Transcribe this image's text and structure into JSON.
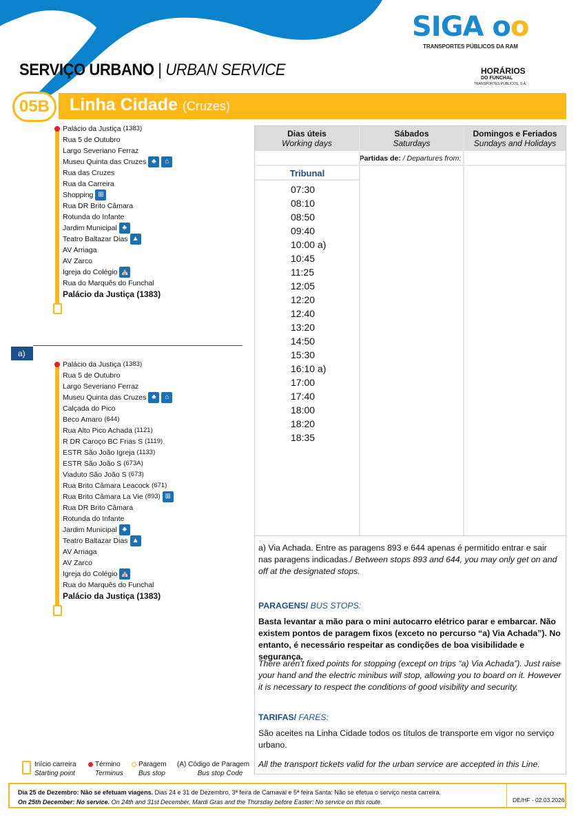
{
  "brand": {
    "logo": "SIGA",
    "logo_sub": "TRANSPORTES PÚBLICOS DA RAM",
    "partner_logo": "HORÁRIOS",
    "partner_sub": "DO FUNCHAL",
    "partner_sub2": "TRANSPORTES PÚBLICOS, S.A.",
    "colors": {
      "blue": "#1a8ad0",
      "yellow": "#fbb817",
      "navy": "#1b4f8a"
    }
  },
  "header": {
    "title_pt": "SERVIÇO URBANO",
    "separator": "|",
    "title_en": "URBAN SERVICE",
    "line_code": "05B",
    "line_name": "Linha Cidade",
    "line_sub": "(Cruzes)"
  },
  "route1": {
    "stops": [
      {
        "name": "Palácio da Justiça",
        "code": "(1383)",
        "icons": []
      },
      {
        "name": "Rua 5 de Outubro",
        "icons": []
      },
      {
        "name": "Largo Severiano Ferraz",
        "icons": []
      },
      {
        "name": "Museu Quinta das Cruzes",
        "icons": [
          "garden-icon",
          "museum-icon"
        ]
      },
      {
        "name": "Rua das Cruzes",
        "icons": []
      },
      {
        "name": "Rua da Carreira",
        "icons": []
      },
      {
        "name": "Shopping",
        "icons": [
          "shopping-icon"
        ]
      },
      {
        "name": "Rua DR Brito Câmara",
        "icons": []
      },
      {
        "name": "Rotunda do Infante",
        "icons": []
      },
      {
        "name": "Jardim Municipal",
        "icons": [
          "garden-icon"
        ]
      },
      {
        "name": "Teatro Baltazar Dias",
        "icons": [
          "theatre-icon"
        ]
      },
      {
        "name": "AV Arriaga",
        "icons": []
      },
      {
        "name": "AV Zarco",
        "icons": []
      },
      {
        "name": "Igreja do Colégio",
        "icons": [
          "church-icon"
        ]
      },
      {
        "name": "Rua do Marquês do Funchal",
        "icons": []
      },
      {
        "name": "Palácio da Justiça (1383)",
        "icons": [],
        "final": true
      }
    ]
  },
  "route2": {
    "label": "a)",
    "stops": [
      {
        "name": "Palácio da Justiça",
        "code": "(1383)",
        "icons": []
      },
      {
        "name": "Rua 5 de Outubro",
        "icons": []
      },
      {
        "name": "Largo Severiano Ferraz",
        "icons": []
      },
      {
        "name": "Museu Quinta das Cruzes",
        "icons": [
          "garden-icon",
          "museum-icon"
        ]
      },
      {
        "name": "Calçada do Pico",
        "icons": []
      },
      {
        "name": "Beco Amaro",
        "code": "(644)",
        "icons": []
      },
      {
        "name": "Rua Alto Pico Achada",
        "code": "(1121)",
        "icons": []
      },
      {
        "name": "R DR Caroço BC Frias S",
        "code": "(1119)",
        "icons": []
      },
      {
        "name": "ESTR São João Igreja",
        "code": "(1133)",
        "icons": []
      },
      {
        "name": "ESTR São João S",
        "code": "(673A)",
        "icons": []
      },
      {
        "name": "Viaduto São João S",
        "code": "(673)",
        "icons": []
      },
      {
        "name": "Rua Brito Câmara Leacock",
        "code": "(671)",
        "icons": []
      },
      {
        "name": "Rua Brito Câmara La Vie",
        "code": "(893)",
        "icons": [
          "shopping-icon"
        ]
      },
      {
        "name": "Rua DR Brito Câmara",
        "icons": []
      },
      {
        "name": "Rotunda do Infante",
        "icons": []
      },
      {
        "name": "Jardim Municipal",
        "icons": [
          "garden-icon"
        ]
      },
      {
        "name": "Teatro Baltazar Dias",
        "icons": [
          "theatre-icon"
        ]
      },
      {
        "name": "AV Arriaga",
        "icons": []
      },
      {
        "name": "AV Zarco",
        "icons": []
      },
      {
        "name": "Igreja do Colégio",
        "icons": [
          "church-icon"
        ]
      },
      {
        "name": "Rua do Marquês do Funchal",
        "icons": []
      },
      {
        "name": "Palácio da Justiça (1383)",
        "icons": [],
        "final": true
      }
    ]
  },
  "timetable": {
    "columns": [
      {
        "pt": "Dias úteis",
        "en": "Working days"
      },
      {
        "pt": "Sábados",
        "en": "Saturdays"
      },
      {
        "pt": "Domingos e Feriados",
        "en": "Sundays and Holidays"
      }
    ],
    "departures_pt": "Partidas de:",
    "departures_en": "/ Departures from:",
    "origin": "Tribunal",
    "working_days": [
      "07:30",
      "08:10",
      "08:50",
      "09:40",
      "10:00 a)",
      "10:45",
      "11:25",
      "12:05",
      "12:20",
      "12:40",
      "13:20",
      "14:50",
      "15:30",
      "16:10 a)",
      "17:00",
      "17:40",
      "18:00",
      "18:20",
      "18:35"
    ]
  },
  "notes": {
    "a_pt": "a) Via Achada. Entre as paragens 893 e 644 apenas é permitido entrar e sair nas paragens indicadas./",
    "a_en": " Between stops 893 and 644, you may only get on and off at the designated stops.",
    "stops_head_pt": "PARAGENS/",
    "stops_head_en": " BUS STOPS:",
    "stops_pt": "Basta levantar a mão para o mini autocarro elétrico parar e embarcar. Não existem pontos de paragem fixos (exceto no percurso “a) Via Achada”). No entanto, é necessário respeitar as condições de boa visibilidade e segurança.",
    "stops_en": "There aren’t fixed points for stopping (except on trips “a) Via Achada”). Just raise your hand and the electric minibus will stop, allowing you to board on it. However it is necessary to respect the conditions of good visibility and security.",
    "fares_head_pt": "TARIFAS/",
    "fares_head_en": " FARES:",
    "fares_pt": "São aceites na Linha Cidade todos os títulos de transporte em vigor no serviço urbano.",
    "fares_en": "All the transport tickets valid for the urban service are accepted in this Line."
  },
  "legend": [
    {
      "pt": "Início carreira",
      "en": "Starting point"
    },
    {
      "pt": "Término",
      "en": "Terminus"
    },
    {
      "pt": "Paragem",
      "en": "Bus stop"
    },
    {
      "pt": "(A)  Código de Paragem",
      "en": "Bus stop Code"
    }
  ],
  "footer": {
    "pt": "Dia 25 de Dezembro: Não se efetuam viagens.",
    "pt2": " Dias 24 e 31 de Dezembro, 3ª feira de Carnaval e 5ª feira Santa: Não se efetua o serviço nesta carreira.",
    "en": "On 25th December: No service.",
    "en2": " On 24th and 31st December, Mardi Gras and the Thursday before Easter: No service on this route.",
    "code": "DE/HF - 02.03.2026"
  }
}
